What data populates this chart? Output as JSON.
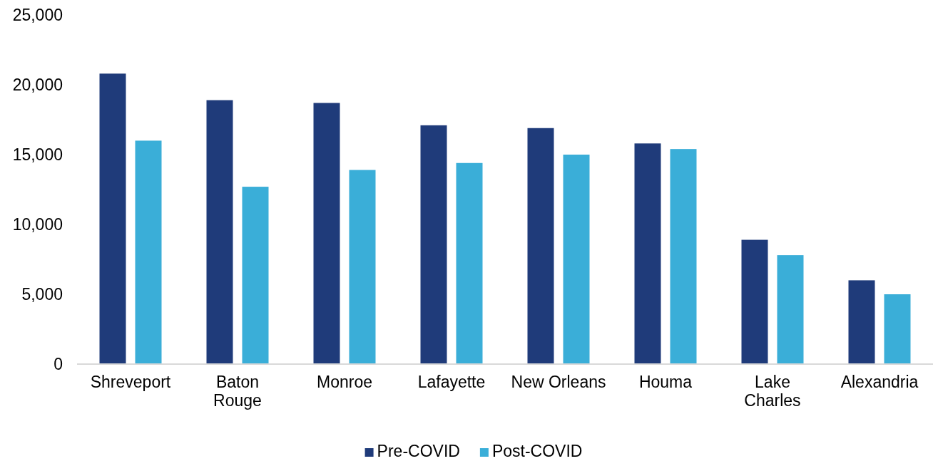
{
  "chart_data": {
    "type": "bar",
    "categories": [
      "Shreveport",
      "Baton\nRouge",
      "Monroe",
      "Lafayette",
      "New Orleans",
      "Houma",
      "Lake\nCharles",
      "Alexandria"
    ],
    "series": [
      {
        "name": "Pre-COVID",
        "color": "#1f3b7a",
        "values": [
          20800,
          18900,
          18700,
          17100,
          16900,
          15800,
          8900,
          6000
        ]
      },
      {
        "name": "Post-COVID",
        "color": "#3aaed8",
        "values": [
          16000,
          12700,
          13900,
          14400,
          15000,
          15400,
          7800,
          5000
        ]
      }
    ],
    "ylim": [
      0,
      25000
    ],
    "yticks": [
      {
        "value": 0,
        "label": "0"
      },
      {
        "value": 5000,
        "label": "5,000"
      },
      {
        "value": 10000,
        "label": "10,000"
      },
      {
        "value": 15000,
        "label": "15,000"
      },
      {
        "value": 20000,
        "label": "20,000"
      },
      {
        "value": 25000,
        "label": "25,000"
      }
    ],
    "grid": false,
    "legend": "bottom"
  }
}
